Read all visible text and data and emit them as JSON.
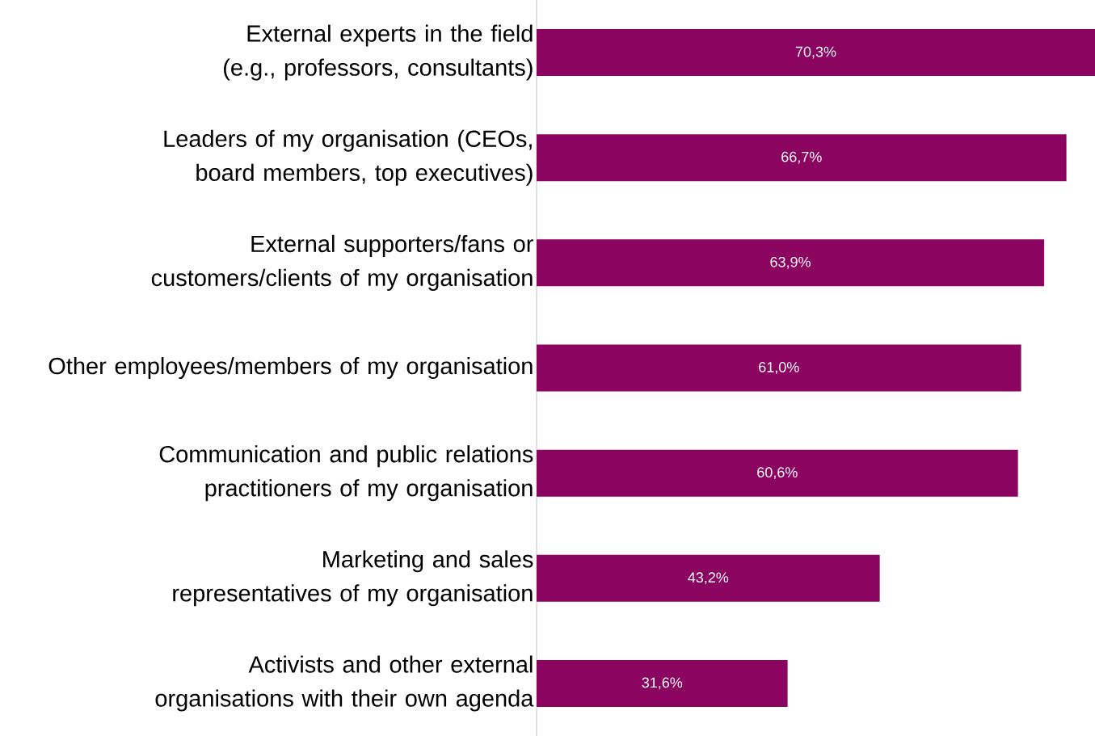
{
  "chart_data": {
    "type": "bar",
    "orientation": "horizontal",
    "categories": [
      "External experts in the field (e.g., professors, consultants)",
      "Leaders of my organisation (CEOs, board members, top executives)",
      "External supporters/fans or customers/clients of my organisation",
      "Other employees/members of my organisation",
      "Communication and public relations practitioners of my organisation",
      "Marketing and sales representatives of my organisation",
      "Activists and other external organisations with their own agenda"
    ],
    "values": [
      70.3,
      66.7,
      63.9,
      61.0,
      60.6,
      43.2,
      31.6
    ],
    "value_labels": [
      "70,3%",
      "66,7%",
      "63,9%",
      "61,0%",
      "60,6%",
      "43,2%",
      "31,6%"
    ],
    "color": "#8b0560"
  }
}
